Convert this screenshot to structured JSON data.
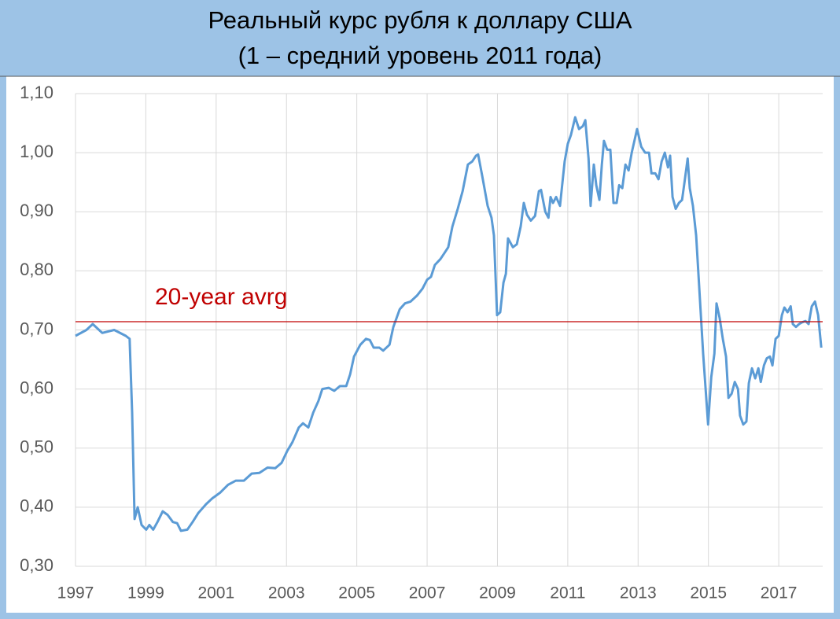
{
  "chart_data": {
    "type": "line",
    "title": "Реальный курс рубля к доллару США",
    "subtitle": "(1 – средний уровень 2011 года)",
    "x": [
      1997.0,
      1997.31,
      1997.49,
      1997.76,
      1998.1,
      1998.43,
      1998.54,
      1998.61,
      1998.68,
      1998.77,
      1998.88,
      1999.01,
      1999.1,
      1999.21,
      1999.33,
      1999.48,
      1999.62,
      1999.77,
      1999.89,
      2000.0,
      2000.18,
      2000.33,
      2000.49,
      2000.71,
      2000.89,
      2001.12,
      2001.34,
      2001.56,
      2001.79,
      2002.01,
      2002.23,
      2002.46,
      2002.68,
      2002.86,
      2003.02,
      2003.17,
      2003.35,
      2003.47,
      2003.62,
      2003.76,
      2003.91,
      2004.02,
      2004.2,
      2004.36,
      2004.52,
      2004.7,
      2004.81,
      2004.92,
      2005.1,
      2005.26,
      2005.37,
      2005.48,
      2005.64,
      2005.75,
      2005.93,
      2006.04,
      2006.22,
      2006.37,
      2006.53,
      2006.71,
      2006.87,
      2007.0,
      2007.11,
      2007.22,
      2007.38,
      2007.49,
      2007.6,
      2007.72,
      2007.87,
      2008.01,
      2008.16,
      2008.28,
      2008.39,
      2008.45,
      2008.57,
      2008.72,
      2008.83,
      2008.9,
      2008.99,
      2009.08,
      2009.17,
      2009.24,
      2009.3,
      2009.44,
      2009.55,
      2009.66,
      2009.75,
      2009.84,
      2009.95,
      2010.07,
      2010.18,
      2010.24,
      2010.36,
      2010.45,
      2010.51,
      2010.58,
      2010.67,
      2010.78,
      2010.91,
      2011.0,
      2011.09,
      2011.21,
      2011.32,
      2011.43,
      2011.5,
      2011.59,
      2011.65,
      2011.74,
      2011.81,
      2011.9,
      2011.97,
      2012.03,
      2012.12,
      2012.21,
      2012.3,
      2012.39,
      2012.46,
      2012.55,
      2012.64,
      2012.73,
      2012.82,
      2012.97,
      2013.09,
      2013.2,
      2013.31,
      2013.38,
      2013.49,
      2013.58,
      2013.67,
      2013.76,
      2013.85,
      2013.91,
      2013.98,
      2014.07,
      2014.16,
      2014.25,
      2014.32,
      2014.41,
      2014.47,
      2014.56,
      2014.65,
      2014.74,
      2014.85,
      2014.99,
      2015.08,
      2015.17,
      2015.23,
      2015.32,
      2015.41,
      2015.5,
      2015.57,
      2015.66,
      2015.75,
      2015.84,
      2015.9,
      2015.99,
      2016.08,
      2016.15,
      2016.24,
      2016.33,
      2016.42,
      2016.49,
      2016.58,
      2016.66,
      2016.75,
      2016.82,
      2016.91,
      2017.0,
      2017.09,
      2017.16,
      2017.25,
      2017.34,
      2017.4,
      2017.49,
      2017.58,
      2017.67,
      2017.76,
      2017.85,
      2017.94,
      2018.03,
      2018.12,
      2018.21
    ],
    "series": [
      {
        "color": "#5b9bd5",
        "values": [
          0.69,
          0.7,
          0.71,
          0.695,
          0.7,
          0.69,
          0.685,
          0.56,
          0.38,
          0.4,
          0.37,
          0.362,
          0.37,
          0.362,
          0.375,
          0.393,
          0.387,
          0.375,
          0.373,
          0.36,
          0.362,
          0.375,
          0.39,
          0.405,
          0.415,
          0.425,
          0.438,
          0.445,
          0.445,
          0.457,
          0.458,
          0.467,
          0.466,
          0.475,
          0.495,
          0.51,
          0.535,
          0.542,
          0.535,
          0.56,
          0.58,
          0.6,
          0.602,
          0.597,
          0.605,
          0.605,
          0.625,
          0.655,
          0.675,
          0.685,
          0.683,
          0.67,
          0.67,
          0.665,
          0.675,
          0.705,
          0.735,
          0.745,
          0.748,
          0.758,
          0.77,
          0.785,
          0.79,
          0.81,
          0.82,
          0.83,
          0.84,
          0.875,
          0.905,
          0.935,
          0.98,
          0.985,
          0.995,
          0.997,
          0.96,
          0.91,
          0.89,
          0.86,
          0.725,
          0.73,
          0.78,
          0.795,
          0.855,
          0.84,
          0.845,
          0.875,
          0.915,
          0.895,
          0.885,
          0.893,
          0.935,
          0.937,
          0.9,
          0.89,
          0.925,
          0.915,
          0.925,
          0.91,
          0.985,
          1.015,
          1.03,
          1.06,
          1.04,
          1.045,
          1.055,
          0.99,
          0.91,
          0.98,
          0.945,
          0.92,
          0.98,
          1.02,
          1.005,
          1.005,
          0.915,
          0.915,
          0.945,
          0.94,
          0.98,
          0.97,
          1.0,
          1.04,
          1.01,
          1.0,
          1.0,
          0.965,
          0.965,
          0.955,
          0.985,
          1.0,
          0.975,
          0.995,
          0.925,
          0.905,
          0.915,
          0.92,
          0.95,
          0.99,
          0.94,
          0.91,
          0.86,
          0.77,
          0.66,
          0.54,
          0.62,
          0.66,
          0.745,
          0.72,
          0.685,
          0.655,
          0.585,
          0.592,
          0.612,
          0.6,
          0.555,
          0.54,
          0.545,
          0.61,
          0.635,
          0.618,
          0.635,
          0.612,
          0.64,
          0.652,
          0.655,
          0.64,
          0.685,
          0.69,
          0.725,
          0.738,
          0.73,
          0.74,
          0.71,
          0.705,
          0.71,
          0.713,
          0.715,
          0.71,
          0.74,
          0.748,
          0.725,
          0.67
        ]
      }
    ],
    "xlim": [
      1997,
      2018.25
    ],
    "xticks": [
      1997,
      1999,
      2001,
      2003,
      2005,
      2007,
      2009,
      2011,
      2013,
      2015,
      2017
    ],
    "ylim": [
      0.3,
      1.1
    ],
    "yticks": [
      {
        "value": 0.3,
        "label": "0,30"
      },
      {
        "value": 0.4,
        "label": "0,40"
      },
      {
        "value": 0.5,
        "label": "0,50"
      },
      {
        "value": 0.6,
        "label": "0,60"
      },
      {
        "value": 0.7,
        "label": "0,70"
      },
      {
        "value": 0.8,
        "label": "0,80"
      },
      {
        "value": 0.9,
        "label": "0,90"
      },
      {
        "value": 1.0,
        "label": "1,00"
      },
      {
        "value": 1.1,
        "label": "1,10"
      }
    ],
    "grid": true,
    "reference_line": {
      "value": 0.714,
      "label": "20-year avrg",
      "color": "#c00000"
    }
  }
}
